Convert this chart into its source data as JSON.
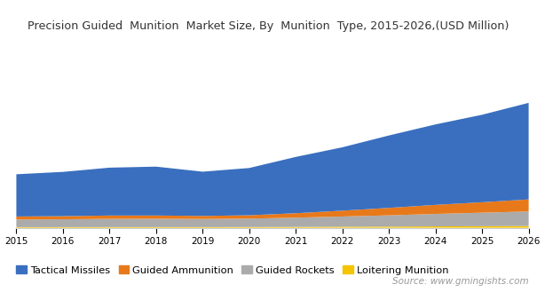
{
  "title": "Precision Guided  Munition  Market Size, By  Munition  Type, 2015-2026,(USD Million)",
  "years": [
    2015,
    2016,
    2017,
    2018,
    2019,
    2020,
    2021,
    2022,
    2023,
    2024,
    2025,
    2026
  ],
  "series": {
    "Loitering Munition": [
      30,
      32,
      33,
      34,
      33,
      36,
      42,
      50,
      58,
      68,
      78,
      90
    ],
    "Guided Rockets": [
      380,
      390,
      410,
      415,
      405,
      420,
      460,
      510,
      560,
      620,
      670,
      720
    ],
    "Guided Ammunition": [
      150,
      155,
      165,
      160,
      150,
      165,
      220,
      290,
      370,
      450,
      520,
      600
    ],
    "Tactical Missiles": [
      2100,
      2200,
      2380,
      2430,
      2200,
      2350,
      2800,
      3150,
      3600,
      4000,
      4350,
      4800
    ]
  },
  "colors": {
    "Loitering Munition": "#F5C400",
    "Guided Rockets": "#ABABAB",
    "Guided Ammunition": "#E8791A",
    "Tactical Missiles": "#3A6FBF"
  },
  "legend_order": [
    "Tactical Missiles",
    "Guided Ammunition",
    "Guided Rockets",
    "Loitering Munition"
  ],
  "background_color": "#ffffff",
  "source_text": "Source: www.gmingishts.com",
  "title_fontsize": 9.2,
  "legend_fontsize": 8.2,
  "ylim": [
    0,
    9000
  ]
}
